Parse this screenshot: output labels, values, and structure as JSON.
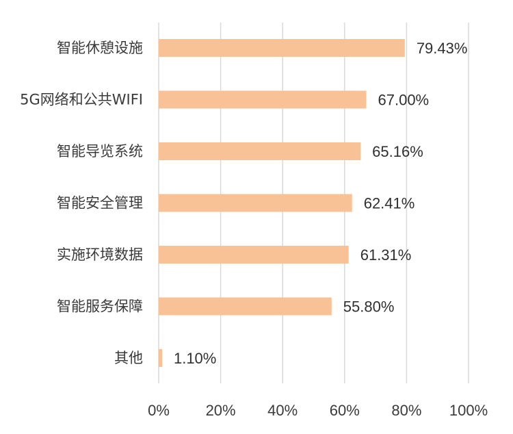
{
  "chart_data": {
    "type": "bar",
    "orientation": "horizontal",
    "categories": [
      "智能休憩设施",
      "5G网络和公共WIFI",
      "智能导览系统",
      "智能安全管理",
      "实施环境数据",
      "智能服务保障",
      "其他"
    ],
    "values": [
      79.43,
      67.0,
      65.16,
      62.41,
      61.31,
      55.8,
      1.1
    ],
    "value_labels": [
      "79.43%",
      "67.00%",
      "65.16%",
      "62.41%",
      "61.31%",
      "55.80%",
      "1.10%"
    ],
    "x_ticks": [
      "0%",
      "20%",
      "40%",
      "60%",
      "80%",
      "100%"
    ],
    "xlim": [
      0,
      100
    ],
    "grid": true,
    "legend": "none",
    "colors": {
      "bar": "#f8c196",
      "grid": "#d9d9d9",
      "text": "#333333"
    }
  }
}
